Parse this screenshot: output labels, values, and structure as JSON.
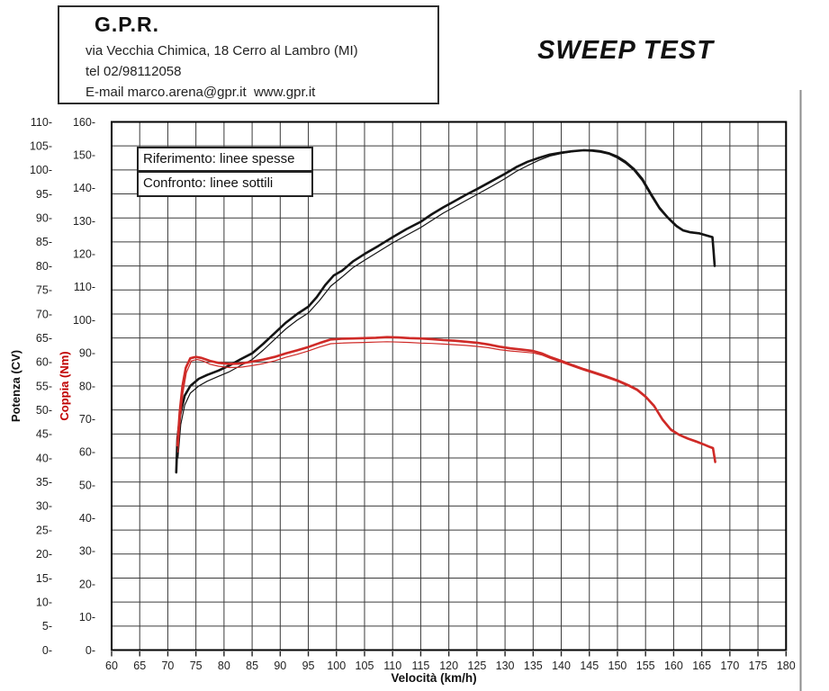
{
  "header": {
    "company": "G.P.R.",
    "address_line": "via Vecchia Chimica, 18 Cerro al Lambro (MI)",
    "phone_line": "tel 02/98112058",
    "email_line": "E-mail marco.arena@gpr.it  www.gpr.it"
  },
  "title": "SWEEP TEST",
  "legend": {
    "reference_label": "Riferimento: linee spesse",
    "comparison_label": "Confronto: linee sottili"
  },
  "colors": {
    "curve_black": "#141414",
    "curve_red": "#cf2a27",
    "grid": "#3c3c3c",
    "frame": "#000000",
    "power_label": "#111111",
    "torque_label": "#c00000",
    "page_edge_line": "#8e8e8e"
  },
  "chart_data": {
    "type": "line",
    "title": "SWEEP TEST",
    "xlabel": "Velocità (km/h)",
    "x_range": [
      60,
      180
    ],
    "x_tick_step": 5,
    "grid": true,
    "legend_position": "top-left",
    "left_axis_power": {
      "label": "Potenza (CV)",
      "range": [
        0,
        110
      ],
      "tick_step": 5
    },
    "left_axis_torque": {
      "label": "Coppia (Nm)",
      "range": [
        0,
        160
      ],
      "tick_step": 10
    },
    "series": [
      {
        "name": "Potenza riferimento (linea spessa)",
        "axis": "power",
        "thickness": "thick",
        "color": "#141414",
        "points": [
          [
            71.5,
            37
          ],
          [
            71.7,
            44
          ],
          [
            72.2,
            49
          ],
          [
            73,
            53
          ],
          [
            74,
            55
          ],
          [
            75.5,
            56.5
          ],
          [
            77,
            57.3
          ],
          [
            79,
            58.2
          ],
          [
            81,
            59.3
          ],
          [
            83,
            60.6
          ],
          [
            85,
            61.8
          ],
          [
            87,
            63.8
          ],
          [
            89,
            66
          ],
          [
            91,
            68.2
          ],
          [
            93,
            70
          ],
          [
            95,
            71.5
          ],
          [
            96.5,
            73.5
          ],
          [
            98,
            76
          ],
          [
            99.5,
            78
          ],
          [
            101,
            79
          ],
          [
            103,
            81
          ],
          [
            105,
            82.5
          ],
          [
            107.5,
            84.2
          ],
          [
            110,
            86
          ],
          [
            112.5,
            87.7
          ],
          [
            115,
            89.2
          ],
          [
            117,
            90.8
          ],
          [
            119,
            92.2
          ],
          [
            121,
            93.5
          ],
          [
            123,
            94.8
          ],
          [
            125,
            96
          ],
          [
            127.5,
            97.6
          ],
          [
            130,
            99.2
          ],
          [
            132,
            100.6
          ],
          [
            134,
            101.7
          ],
          [
            136,
            102.5
          ],
          [
            138,
            103.2
          ],
          [
            140,
            103.6
          ],
          [
            142,
            103.9
          ],
          [
            144,
            104.1
          ],
          [
            145.5,
            104
          ],
          [
            147,
            103.8
          ],
          [
            148.5,
            103.4
          ],
          [
            150,
            102.6
          ],
          [
            151.5,
            101.5
          ],
          [
            153,
            100
          ],
          [
            154.5,
            97.8
          ],
          [
            156,
            94.8
          ],
          [
            157.5,
            92
          ],
          [
            159,
            90
          ],
          [
            160.5,
            88.3
          ],
          [
            161.7,
            87.4
          ],
          [
            163,
            87
          ],
          [
            164.5,
            86.8
          ],
          [
            166,
            86.3
          ],
          [
            166.9,
            86
          ],
          [
            167.1,
            83
          ],
          [
            167.3,
            80
          ]
        ]
      },
      {
        "name": "Potenza confronto (linea sottile)",
        "axis": "power",
        "thickness": "thin",
        "color": "#141414",
        "points": [
          [
            71.8,
            40
          ],
          [
            72.3,
            47
          ],
          [
            73,
            51
          ],
          [
            74,
            53.5
          ],
          [
            75.5,
            55
          ],
          [
            77,
            56
          ],
          [
            79,
            57
          ],
          [
            81,
            58
          ],
          [
            83,
            59.3
          ],
          [
            85,
            60.5
          ],
          [
            87,
            62.5
          ],
          [
            89,
            64.7
          ],
          [
            91,
            66.9
          ],
          [
            93,
            68.7
          ],
          [
            95,
            70.2
          ],
          [
            97,
            72.8
          ],
          [
            99,
            75.8
          ],
          [
            101,
            77.7
          ],
          [
            103,
            79.7
          ],
          [
            105,
            81.2
          ],
          [
            107.5,
            83
          ],
          [
            110,
            84.8
          ],
          [
            112.5,
            86.4
          ],
          [
            115,
            88
          ],
          [
            117,
            89.5
          ],
          [
            119,
            91
          ],
          [
            121,
            92.3
          ],
          [
            123,
            93.6
          ],
          [
            125,
            94.9
          ],
          [
            127.5,
            96.5
          ],
          [
            130,
            98.2
          ],
          [
            132,
            99.7
          ],
          [
            134,
            100.9
          ],
          [
            136,
            102
          ],
          [
            138,
            102.9
          ],
          [
            140,
            103.4
          ],
          [
            142,
            103.8
          ],
          [
            144,
            104.2
          ],
          [
            145.5,
            104.2
          ],
          [
            147,
            104
          ],
          [
            148.5,
            103.6
          ],
          [
            150,
            102.9
          ],
          [
            151.5,
            101.8
          ],
          [
            153,
            100.3
          ],
          [
            154.5,
            98.2
          ],
          [
            156,
            95.2
          ],
          [
            157.5,
            92.3
          ],
          [
            159,
            90.2
          ],
          [
            160.5,
            88.5
          ],
          [
            161.7,
            87.5
          ],
          [
            163,
            87.1
          ],
          [
            164.5,
            86.9
          ],
          [
            166,
            86.4
          ],
          [
            166.9,
            86.1
          ],
          [
            167.1,
            83.2
          ],
          [
            167.3,
            80.2
          ]
        ]
      },
      {
        "name": "Coppia riferimento (linea spessa)",
        "axis": "torque",
        "thickness": "thick",
        "color": "#cf2a27",
        "points": [
          [
            71.7,
            62
          ],
          [
            72.1,
            72
          ],
          [
            72.6,
            80
          ],
          [
            73.2,
            85.5
          ],
          [
            74,
            88.4
          ],
          [
            75,
            88.8
          ],
          [
            76,
            88.5
          ],
          [
            77.5,
            87.6
          ],
          [
            79,
            87
          ],
          [
            81,
            86.7
          ],
          [
            83,
            86.8
          ],
          [
            85,
            87.4
          ],
          [
            87,
            88
          ],
          [
            89,
            88.8
          ],
          [
            91,
            89.9
          ],
          [
            93,
            90.8
          ],
          [
            95,
            91.8
          ],
          [
            97,
            93
          ],
          [
            99,
            94.1
          ],
          [
            101,
            94.3
          ],
          [
            103,
            94.4
          ],
          [
            105,
            94.5
          ],
          [
            107,
            94.6
          ],
          [
            109,
            94.8
          ],
          [
            111,
            94.7
          ],
          [
            113,
            94.5
          ],
          [
            115,
            94.4
          ],
          [
            117,
            94.2
          ],
          [
            119,
            93.9
          ],
          [
            121,
            93.7
          ],
          [
            123,
            93.4
          ],
          [
            125,
            93.1
          ],
          [
            127,
            92.6
          ],
          [
            129,
            91.9
          ],
          [
            131,
            91.4
          ],
          [
            133,
            91
          ],
          [
            135,
            90.6
          ],
          [
            136.5,
            89.9
          ],
          [
            138,
            88.8
          ],
          [
            140,
            87.6
          ],
          [
            142,
            86.3
          ],
          [
            144,
            85.1
          ],
          [
            146,
            84
          ],
          [
            148,
            82.9
          ],
          [
            150,
            81.7
          ],
          [
            152,
            80.2
          ],
          [
            153.5,
            78.9
          ],
          [
            155,
            76.8
          ],
          [
            156.5,
            74
          ],
          [
            158,
            69.9
          ],
          [
            159.5,
            66.8
          ],
          [
            161,
            65.2
          ],
          [
            162.5,
            64.1
          ],
          [
            164,
            63.2
          ],
          [
            165.5,
            62.2
          ],
          [
            166.5,
            61.5
          ],
          [
            167,
            61.2
          ],
          [
            167.2,
            59
          ],
          [
            167.4,
            57
          ]
        ]
      },
      {
        "name": "Coppia confronto (linea sottile)",
        "axis": "torque",
        "thickness": "thin",
        "color": "#cf2a27",
        "points": [
          [
            71.8,
            60
          ],
          [
            72.2,
            70
          ],
          [
            72.7,
            78
          ],
          [
            73.3,
            84
          ],
          [
            74.2,
            87.6
          ],
          [
            75.2,
            88
          ],
          [
            76.2,
            87.6
          ],
          [
            77.5,
            86.6
          ],
          [
            79,
            86
          ],
          [
            81,
            85.6
          ],
          [
            83,
            85.7
          ],
          [
            85,
            86.2
          ],
          [
            87,
            86.8
          ],
          [
            89,
            87.6
          ],
          [
            91,
            88.7
          ],
          [
            93,
            89.6
          ],
          [
            95,
            90.6
          ],
          [
            97,
            91.8
          ],
          [
            99,
            92.8
          ],
          [
            101,
            93
          ],
          [
            103,
            93.1
          ],
          [
            105,
            93.2
          ],
          [
            107,
            93.3
          ],
          [
            109,
            93.4
          ],
          [
            111,
            93.3
          ],
          [
            113,
            93.2
          ],
          [
            115,
            93
          ],
          [
            117,
            92.9
          ],
          [
            119,
            92.7
          ],
          [
            121,
            92.5
          ],
          [
            123,
            92.3
          ],
          [
            125,
            92
          ],
          [
            127,
            91.6
          ],
          [
            129,
            91
          ],
          [
            131,
            90.6
          ],
          [
            133,
            90.3
          ],
          [
            135,
            90
          ],
          [
            136.5,
            89.4
          ],
          [
            138,
            88.4
          ],
          [
            140,
            87.2
          ],
          [
            142,
            86
          ],
          [
            144,
            84.8
          ],
          [
            146,
            83.7
          ],
          [
            148,
            82.6
          ],
          [
            150,
            81.4
          ],
          [
            152,
            79.9
          ],
          [
            153.5,
            78.6
          ],
          [
            155,
            76.5
          ],
          [
            156.5,
            73.7
          ],
          [
            158,
            69.6
          ],
          [
            159.5,
            66.5
          ],
          [
            161,
            65
          ],
          [
            162.5,
            63.9
          ],
          [
            164,
            63
          ],
          [
            165.5,
            62
          ],
          [
            166.5,
            61.3
          ],
          [
            167,
            61
          ],
          [
            167.2,
            58.8
          ],
          [
            167.4,
            56.8
          ]
        ]
      }
    ]
  }
}
